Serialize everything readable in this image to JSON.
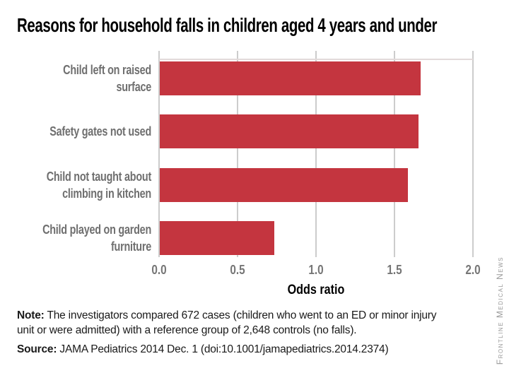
{
  "chart_data": {
    "type": "bar",
    "orientation": "horizontal",
    "title": "Reasons for household falls in children aged 4 years and under",
    "categories": [
      "Child left on raised surface",
      "Safety gates not used",
      "Child not taught about\nclimbing in kitchen",
      "Child played on garden\nfurniture"
    ],
    "values": [
      1.66,
      1.65,
      1.58,
      0.73
    ],
    "xlabel": "Odds ratio",
    "xlim": [
      0,
      2.0
    ],
    "x_ticks": [
      "0.0",
      "0.5",
      "1.0",
      "1.5",
      "2.0"
    ],
    "bar_color": "#c4353f",
    "gridline_color": "#cccccc",
    "grid": true,
    "legend": "none"
  },
  "note": {
    "label": "Note:",
    "text": "The investigators compared 672 cases (children who went to an ED or minor injury\nunit or were admitted) with a reference group of 2,648 controls (no falls)."
  },
  "source": {
    "label": "Source:",
    "text": "JAMA Pediatrics 2014 Dec. 1 (doi:10.1001/jamapediatrics.2014.2374)"
  },
  "credit": "Frontline Medical News"
}
